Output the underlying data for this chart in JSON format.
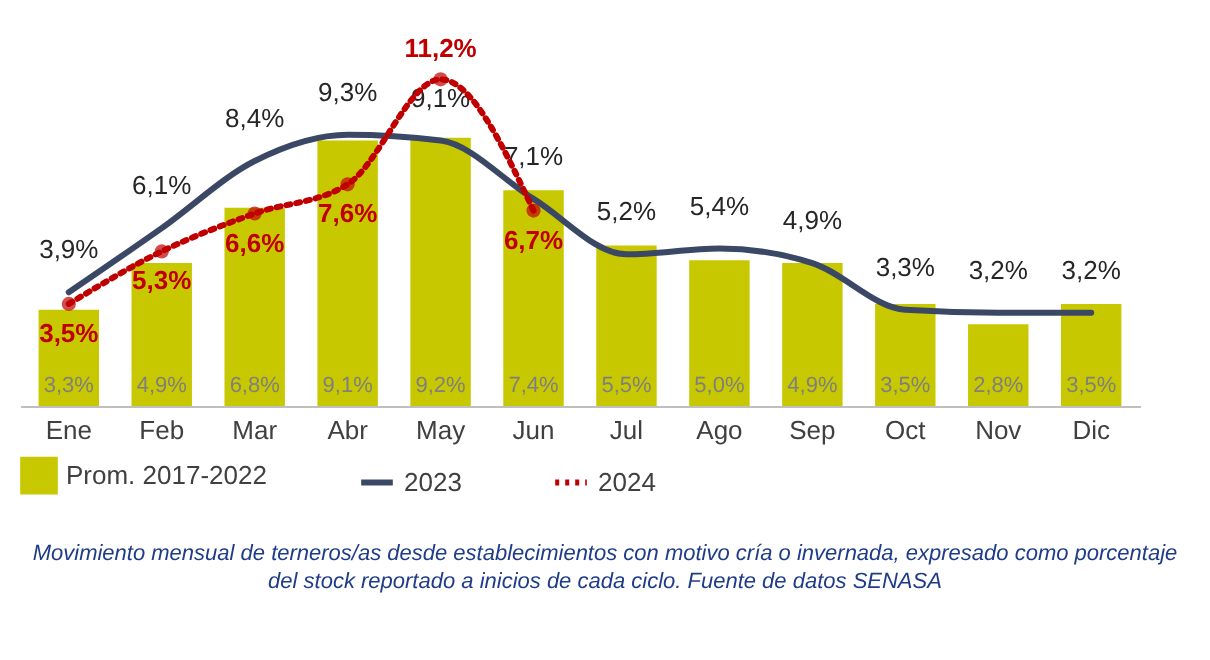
{
  "chart_data": {
    "type": "bar",
    "categories": [
      "Ene",
      "Feb",
      "Mar",
      "Abr",
      "May",
      "Jun",
      "Jul",
      "Ago",
      "Sep",
      "Oct",
      "Nov",
      "Dic"
    ],
    "series": [
      {
        "name": "Prom. 2017-2022",
        "color": "#c8c800",
        "values": [
          3.3,
          4.9,
          6.8,
          9.1,
          9.2,
          7.4,
          5.5,
          5.0,
          4.9,
          3.5,
          2.8,
          3.5
        ],
        "value_labels": [
          "3,3%",
          "4,9%",
          "6,8%",
          "9,1%",
          "9,2%",
          "7,4%",
          "5,5%",
          "5,0%",
          "4,9%",
          "3,5%",
          "2,8%",
          "3,5%"
        ]
      },
      {
        "name": "2023",
        "type": "line",
        "color": "#3b4865",
        "line_style": "solid",
        "values": [
          3.9,
          6.1,
          8.4,
          9.3,
          9.1,
          7.1,
          5.2,
          5.4,
          4.9,
          3.3,
          3.2,
          3.2
        ],
        "value_labels": [
          "3,9%",
          "6,1%",
          "8,4%",
          "9,3%",
          "9,1%",
          "7,1%",
          "5,2%",
          "5,4%",
          "4,9%",
          "3,3%",
          "3,2%",
          "3,2%"
        ]
      },
      {
        "name": "2024",
        "type": "line",
        "color": "#c00000",
        "line_style": "dotted",
        "marker": "circle",
        "values": [
          3.5,
          5.3,
          6.6,
          7.6,
          11.2,
          6.7,
          null,
          null,
          null,
          null,
          null,
          null
        ],
        "value_labels": [
          "3,5%",
          "5,3%",
          "6,6%",
          "7,6%",
          "11,2%",
          "6,7%",
          null,
          null,
          null,
          null,
          null,
          null
        ]
      }
    ],
    "legend": "bottom",
    "annotations": [
      "Movimiento mensual de terneros/as desde establecimientos con motivo cría o invernada, expresado como porcentaje del stock reportado a inicios de cada ciclo. Fuente de datos SENASA"
    ]
  }
}
